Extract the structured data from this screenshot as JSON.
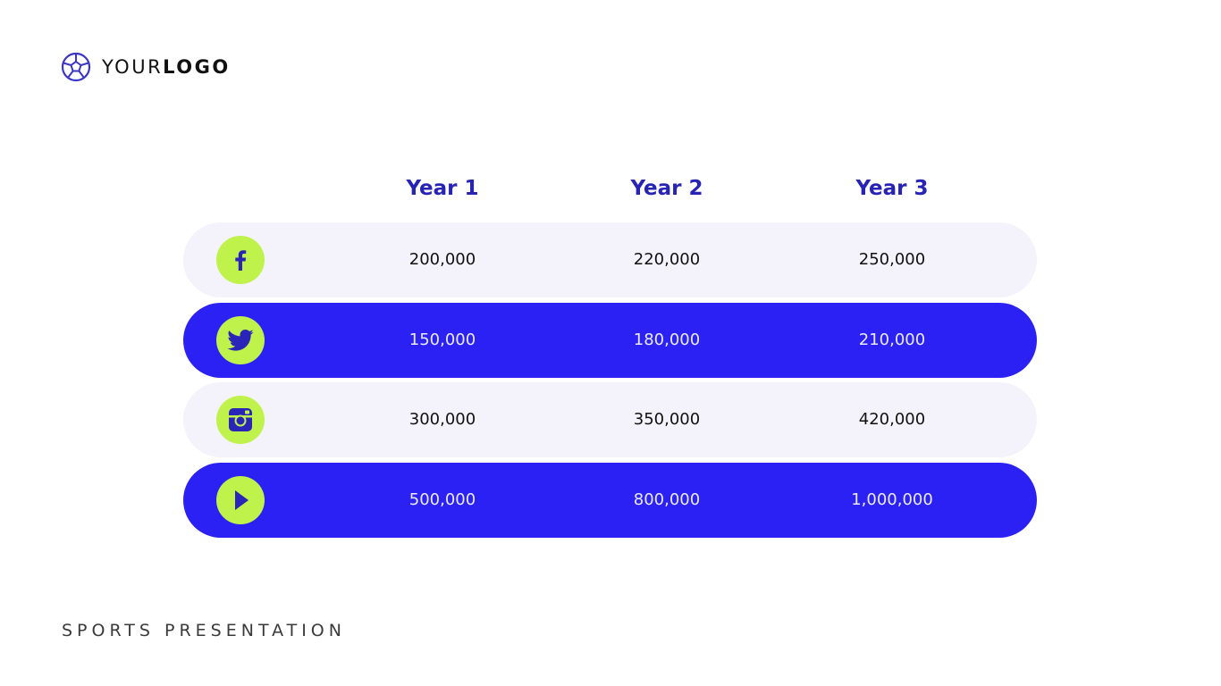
{
  "logo": {
    "text_light": "YOUR",
    "text_bold": "LOGO",
    "icon": "soccer-ball-icon",
    "color": "#3b35c8"
  },
  "table": {
    "headers": [
      "Year 1",
      "Year 2",
      "Year 3"
    ],
    "rows": [
      {
        "icon": "facebook-icon",
        "values": [
          "200,000",
          "220,000",
          "250,000"
        ]
      },
      {
        "icon": "twitter-icon",
        "values": [
          "150,000",
          "180,000",
          "210,000"
        ]
      },
      {
        "icon": "instagram-icon",
        "values": [
          "300,000",
          "350,000",
          "420,000"
        ]
      },
      {
        "icon": "play-icon",
        "values": [
          "500,000",
          "800,000",
          "1,000,000"
        ]
      }
    ]
  },
  "footer": {
    "text": "SPORTS PRESENTATION"
  },
  "colors": {
    "header_text": "#2623b5",
    "row_light": "#f4f3fb",
    "row_dark": "#2b21f5",
    "icon_bg": "#bff24b",
    "icon_fg": "#2a24b8"
  }
}
